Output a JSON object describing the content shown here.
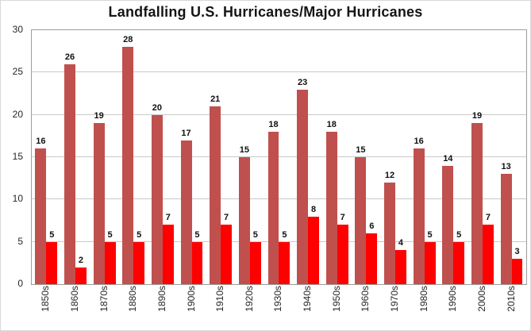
{
  "title": "Landfalling U.S. Hurricanes/Major Hurricanes",
  "colors": {
    "hurricanes_bar": "#C0504D",
    "major_hurricanes_bar": "#FE0000",
    "gridline": "#C9C9C9",
    "plot_border": "#9D9D9D"
  },
  "chart_data": {
    "type": "bar",
    "title": "Landfalling U.S. Hurricanes/Major Hurricanes",
    "xlabel": "",
    "ylabel": "",
    "ylim": [
      0,
      30
    ],
    "yticks": [
      0,
      5,
      10,
      15,
      20,
      25,
      30
    ],
    "grid": true,
    "legend_position": "none",
    "categories": [
      "1850s",
      "1860s",
      "1870s",
      "1880s",
      "1890s",
      "1900s",
      "1910s",
      "1920s",
      "1930s",
      "1940s",
      "1950s",
      "1960s",
      "1970s",
      "1980s",
      "1990s",
      "2000s",
      "2010s"
    ],
    "series": [
      {
        "name": "Hurricanes",
        "color": "#C0504D",
        "values": [
          16,
          26,
          19,
          28,
          20,
          17,
          21,
          15,
          18,
          23,
          18,
          15,
          12,
          16,
          14,
          19,
          13
        ]
      },
      {
        "name": "Major Hurricanes",
        "color": "#FE0000",
        "values": [
          5,
          2,
          5,
          5,
          7,
          5,
          7,
          5,
          5,
          8,
          7,
          6,
          4,
          5,
          5,
          7,
          3
        ]
      }
    ],
    "data_labels": true
  }
}
